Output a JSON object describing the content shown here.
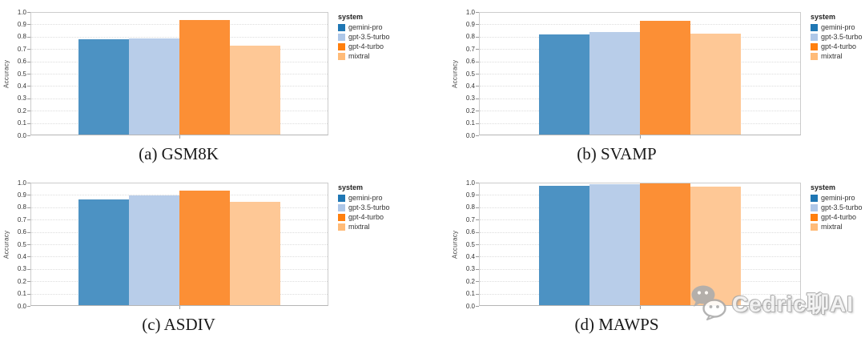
{
  "figure": {
    "y_axis": {
      "label": "Accuracy",
      "ticks": [
        "1.0",
        "0.9",
        "0.8",
        "0.7",
        "0.6",
        "0.5",
        "0.4",
        "0.3",
        "0.2",
        "0.1",
        "0.0"
      ],
      "min": 0,
      "max": 1
    },
    "legend": {
      "title": "system",
      "position": "right",
      "items": [
        {
          "label": "gemini-pro",
          "swatch_color": "#1f77b4",
          "bar_color": "#4c92c3"
        },
        {
          "label": "gpt-3.5-turbo",
          "swatch_color": "#aec7e8",
          "bar_color": "#b8cde9"
        },
        {
          "label": "gpt-4-turbo",
          "swatch_color": "#ff7f0e",
          "bar_color": "#fc8f35"
        },
        {
          "label": "mixtral",
          "swatch_color": "#ffbb78",
          "bar_color": "#fec896"
        }
      ]
    }
  },
  "chart_data": [
    {
      "type": "bar",
      "title": "GSM8K",
      "caption": "(a) GSM8K",
      "categories": [
        "gemini-pro",
        "gpt-3.5-turbo",
        "gpt-4-turbo",
        "mixtral"
      ],
      "values": [
        0.77,
        0.78,
        0.93,
        0.72
      ],
      "xlabel": "",
      "ylabel": "Accuracy",
      "ylim": [
        0,
        1
      ],
      "grid": true,
      "legend_position": "right"
    },
    {
      "type": "bar",
      "title": "SVAMP",
      "caption": "(b) SVAMP",
      "categories": [
        "gemini-pro",
        "gpt-3.5-turbo",
        "gpt-4-turbo",
        "mixtral"
      ],
      "values": [
        0.81,
        0.83,
        0.92,
        0.82
      ],
      "xlabel": "",
      "ylabel": "Accuracy",
      "ylim": [
        0,
        1
      ],
      "grid": true,
      "legend_position": "right"
    },
    {
      "type": "bar",
      "title": "ASDIV",
      "caption": "(c) ASDIV",
      "categories": [
        "gemini-pro",
        "gpt-3.5-turbo",
        "gpt-4-turbo",
        "mixtral"
      ],
      "values": [
        0.86,
        0.89,
        0.93,
        0.84
      ],
      "xlabel": "",
      "ylabel": "Accuracy",
      "ylim": [
        0,
        1
      ],
      "grid": true,
      "legend_position": "right"
    },
    {
      "type": "bar",
      "title": "MAWPS",
      "caption": "(d) MAWPS",
      "categories": [
        "gemini-pro",
        "gpt-3.5-turbo",
        "gpt-4-turbo",
        "mixtral"
      ],
      "values": [
        0.97,
        0.98,
        0.99,
        0.96
      ],
      "xlabel": "",
      "ylabel": "Accuracy",
      "ylim": [
        0,
        1
      ],
      "grid": true,
      "legend_position": "right"
    }
  ],
  "watermark": {
    "icon": "wechat-icon",
    "text": "Cedric聊AI"
  }
}
